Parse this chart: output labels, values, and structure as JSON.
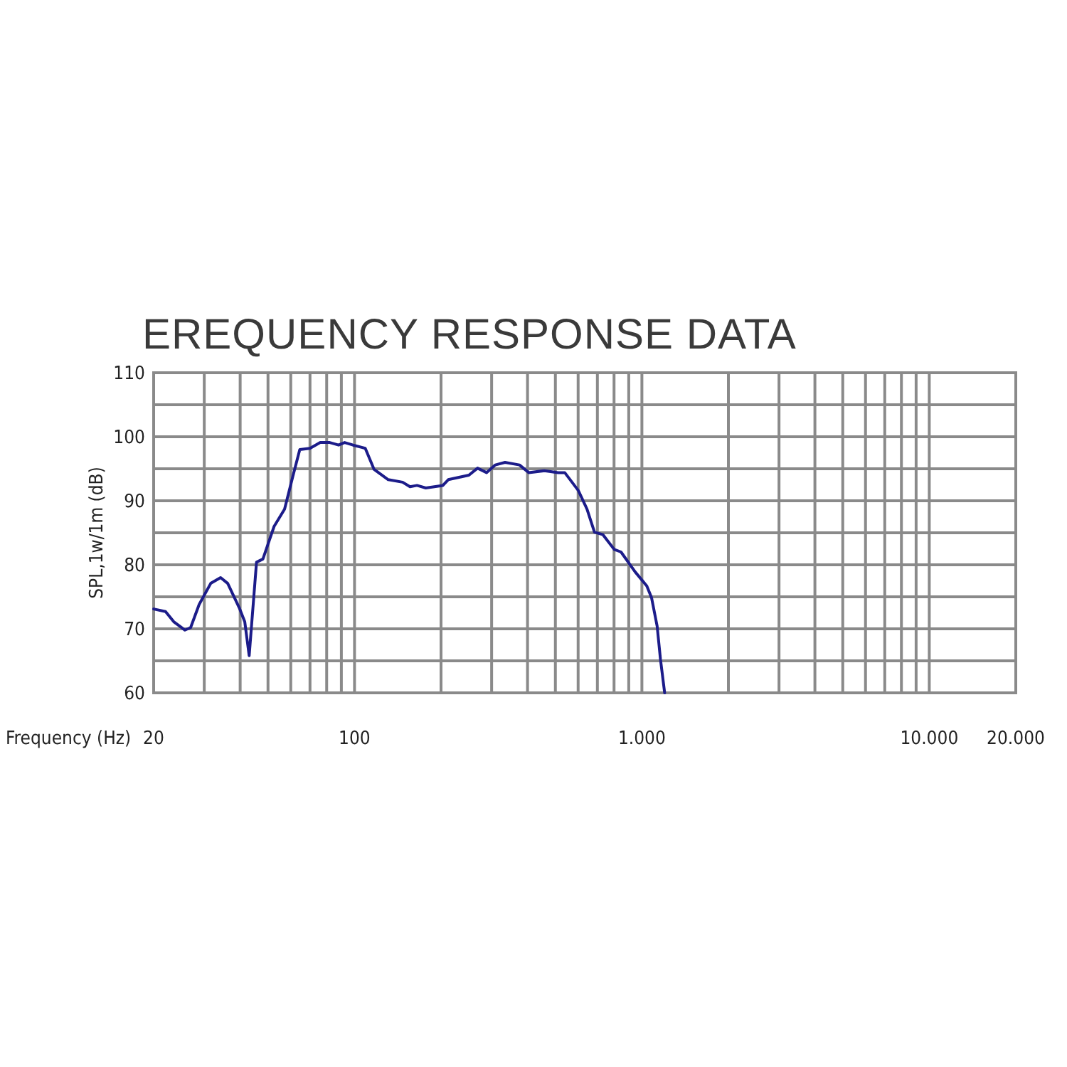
{
  "chart_data": {
    "type": "line",
    "title": "EREQUENCY RESPONSE DATA",
    "xlabel": "Frequency (Hz)",
    "ylabel": "SPL,1w/1m (dB)",
    "log": "x",
    "grid": true,
    "marker": "none",
    "line_style": "solid",
    "xlim": [
      20,
      20000
    ],
    "ylim": [
      60,
      110
    ],
    "xticks": [
      20,
      {
        "value": 30,
        "label": null
      },
      {
        "value": 40,
        "label": null
      },
      {
        "value": 50,
        "label": null
      },
      {
        "value": 60,
        "label": null
      },
      {
        "value": 70,
        "label": null
      },
      {
        "value": 80,
        "label": null
      },
      {
        "value": 90,
        "label": null
      },
      100,
      {
        "value": 200,
        "label": null
      },
      {
        "value": 300,
        "label": null
      },
      {
        "value": 400,
        "label": null
      },
      {
        "value": 500,
        "label": null
      },
      {
        "value": 600,
        "label": null
      },
      {
        "value": 700,
        "label": null
      },
      {
        "value": 800,
        "label": null
      },
      {
        "value": 900,
        "label": null
      },
      {
        "value": 1000,
        "label": "1.000"
      },
      {
        "value": 2000,
        "label": null
      },
      {
        "value": 3000,
        "label": null
      },
      {
        "value": 4000,
        "label": null
      },
      {
        "value": 5000,
        "label": null
      },
      {
        "value": 6000,
        "label": null
      },
      {
        "value": 7000,
        "label": null
      },
      {
        "value": 8000,
        "label": null
      },
      {
        "value": 9000,
        "label": null
      },
      {
        "value": 10000,
        "label": "10.000"
      },
      {
        "value": 20000,
        "label": "20.000"
      }
    ],
    "yticks": [
      60,
      {
        "value": 65,
        "label": null
      },
      70,
      {
        "value": 75,
        "label": null
      },
      80,
      {
        "value": 85,
        "label": null
      },
      90,
      {
        "value": 95,
        "label": null
      },
      100,
      {
        "value": 105,
        "label": null
      },
      110
    ],
    "series": [
      {
        "color": "#1c1c8a",
        "x": [
          20,
          22,
          23.5,
          25.7,
          26.9,
          28.8,
          31.6,
          34.2,
          36.2,
          39.7,
          41.5,
          43,
          45.6,
          48,
          52.5,
          57.1,
          61,
          64.5,
          70,
          76,
          82,
          88,
          92.4,
          98.8,
          109,
          117,
          131,
          147,
          156,
          165,
          177,
          203,
          212,
          250,
          268,
          288,
          309,
          334,
          375,
          404,
          458,
          511,
          539,
          601,
          644,
          684,
          732,
          801,
          846,
          947,
          1040,
          1080,
          1130,
          1160,
          1200
        ],
        "values": [
          73.1,
          72.7,
          71.1,
          69.8,
          70.2,
          73.8,
          77.1,
          78,
          77.1,
          73.3,
          71.1,
          65.8,
          80.4,
          80.9,
          86,
          88.7,
          93.8,
          98,
          98.2,
          99.1,
          99.1,
          98.7,
          99.1,
          98.7,
          98.2,
          94.9,
          93.3,
          92.9,
          92.2,
          92.4,
          92,
          92.4,
          93.3,
          94,
          95.1,
          94.4,
          95.6,
          96,
          95.6,
          94.4,
          94.7,
          94.4,
          94.4,
          91.6,
          88.7,
          85.1,
          84.7,
          82.4,
          82,
          78.9,
          76.7,
          74.9,
          70.4,
          65.3,
          60
        ]
      }
    ]
  }
}
